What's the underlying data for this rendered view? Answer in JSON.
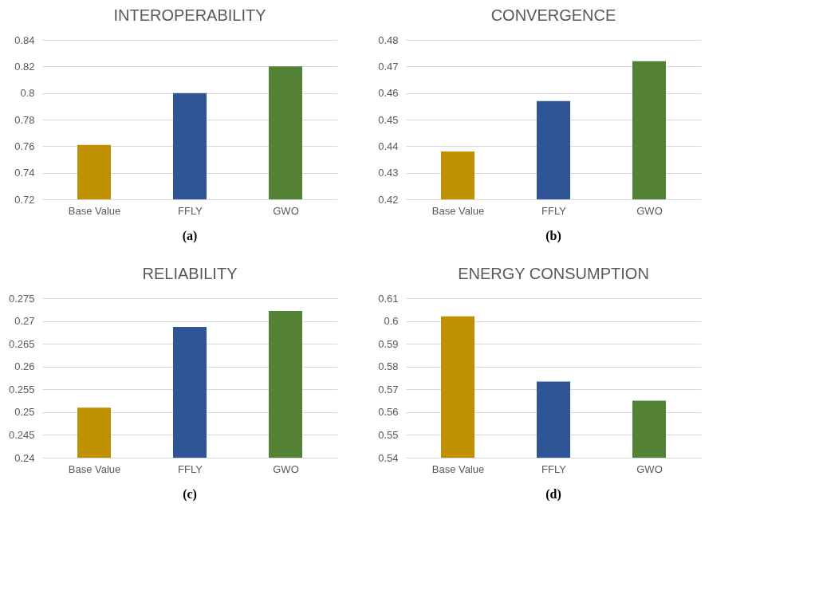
{
  "chart_data": [
    {
      "type": "bar",
      "title": "INTEROPERABILITY",
      "categories": [
        "Base Value",
        "FFLY",
        "GWO"
      ],
      "values": [
        0.761,
        0.8,
        0.82
      ],
      "colors": [
        "#bf9000",
        "#2f5597",
        "#548235"
      ],
      "ylim": [
        0.72,
        0.84
      ],
      "yticks": [
        0.72,
        0.74,
        0.76,
        0.78,
        0.8,
        0.82,
        0.84
      ],
      "grid": "y",
      "annotations": [
        "(a)"
      ]
    },
    {
      "type": "bar",
      "title": "CONVERGENCE",
      "categories": [
        "Base Value",
        "FFLY",
        "GWO"
      ],
      "values": [
        0.438,
        0.457,
        0.472
      ],
      "colors": [
        "#bf9000",
        "#2f5597",
        "#548235"
      ],
      "ylim": [
        0.42,
        0.48
      ],
      "yticks": [
        0.42,
        0.43,
        0.44,
        0.45,
        0.46,
        0.47,
        0.48
      ],
      "grid": "y",
      "annotations": [
        "(b)"
      ]
    },
    {
      "type": "bar",
      "title": "RELIABILITY",
      "categories": [
        "Base Value",
        "FFLY",
        "GWO"
      ],
      "values": [
        0.251,
        0.2687,
        0.2722
      ],
      "colors": [
        "#bf9000",
        "#2f5597",
        "#548235"
      ],
      "ylim": [
        0.24,
        0.275
      ],
      "yticks": [
        0.24,
        0.245,
        0.25,
        0.255,
        0.26,
        0.265,
        0.27,
        0.275
      ],
      "grid": "y",
      "annotations": [
        "(c)"
      ]
    },
    {
      "type": "bar",
      "title": "ENERGY CONSUMPTION",
      "categories": [
        "Base Value",
        "FFLY",
        "GWO"
      ],
      "values": [
        0.602,
        0.5734,
        0.565
      ],
      "colors": [
        "#bf9000",
        "#2f5597",
        "#548235"
      ],
      "ylim": [
        0.54,
        0.61
      ],
      "yticks": [
        0.54,
        0.55,
        0.56,
        0.57,
        0.58,
        0.59,
        0.6,
        0.61
      ],
      "grid": "y",
      "annotations": [
        "(d)"
      ]
    }
  ]
}
